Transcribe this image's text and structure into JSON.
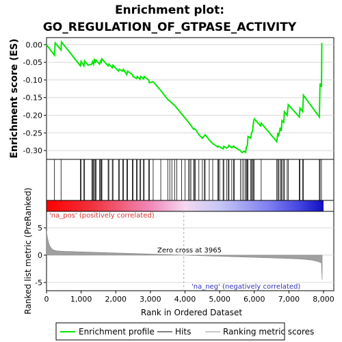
{
  "chart_data": {
    "type": "line",
    "title_line1": "Enrichment plot:",
    "title_line2": "GO_REGULATION_OF_GTPASE_ACTIVITY",
    "es_ylabel": "Enrichment score (ES)",
    "metric_ylabel": "Ranked list metric (PreRanked)",
    "xlabel": "Rank in Ordered Dataset",
    "xlim": [
      0,
      8000
    ],
    "es_ylim": [
      -0.325,
      0.02
    ],
    "metric_ylim": [
      -6.5,
      8
    ],
    "x_ticks": [
      0,
      1000,
      2000,
      3000,
      4000,
      5000,
      6000,
      7000,
      8000
    ],
    "x_tick_labels": [
      "0",
      "1,000",
      "2,000",
      "3,000",
      "4,000",
      "5,000",
      "6,000",
      "7,000",
      "8,000"
    ],
    "es_ticks": [
      0.0,
      -0.05,
      -0.1,
      -0.15,
      -0.2,
      -0.25,
      -0.3
    ],
    "es_tick_labels": [
      "0.00",
      "-0.05",
      "-0.10",
      "-0.15",
      "-0.20",
      "-0.25",
      "-0.30"
    ],
    "metric_ticks": [
      5,
      0,
      -5
    ],
    "metric_tick_labels": [
      "5",
      "0",
      "-5"
    ],
    "zero_cross_label": "Zero cross at 3965",
    "zero_cross": 3965,
    "pos_label": "'na_pos' (positively correlated)",
    "neg_label": "'na_neg' (negatively correlated)",
    "legend": [
      "Enrichment profile",
      "Hits",
      "Ranking metric scores"
    ],
    "colors": {
      "enrichment": "#00e600",
      "hits": "#000000",
      "metric": "#a0a0a0",
      "pos_text": "#e03030",
      "neg_text": "#3030c0"
    },
    "es_profile": {
      "x": [
        0,
        230,
        250,
        420,
        430,
        980,
        1000,
        1080,
        1100,
        1200,
        1310,
        1330,
        1360,
        1380,
        1410,
        1430,
        1530,
        1560,
        1580,
        1600,
        1780,
        1800,
        1900,
        1920,
        2080,
        2100,
        2200,
        2220,
        2320,
        2340,
        2480,
        2500,
        2600,
        2620,
        2700,
        2720,
        2800,
        2820,
        2950,
        2970,
        3080,
        3300,
        3500,
        3700,
        3900,
        4100,
        4250,
        4270,
        4300,
        4400,
        4500,
        4560,
        4580,
        4700,
        4800,
        4950,
        4970,
        5100,
        5120,
        5200,
        5250,
        5270,
        5350,
        5400,
        5420,
        5600,
        5650,
        5700,
        5750,
        5770,
        5800,
        5820,
        5900,
        5920,
        5950,
        5970,
        6000,
        6180,
        6200,
        6650,
        6680,
        6700,
        6750,
        6780,
        6800,
        6850,
        6870,
        6950,
        6980,
        7300,
        7320,
        7400,
        7420,
        7880,
        7900,
        7940,
        7950
      ],
      "y": [
        0.0,
        -0.03,
        0.005,
        -0.015,
        0.008,
        -0.06,
        -0.047,
        -0.06,
        -0.046,
        -0.058,
        -0.055,
        -0.048,
        -0.055,
        -0.04,
        -0.052,
        -0.044,
        -0.055,
        -0.046,
        -0.05,
        -0.04,
        -0.06,
        -0.055,
        -0.065,
        -0.058,
        -0.075,
        -0.07,
        -0.075,
        -0.07,
        -0.085,
        -0.075,
        -0.085,
        -0.09,
        -0.096,
        -0.09,
        -0.098,
        -0.09,
        -0.097,
        -0.09,
        -0.1,
        -0.108,
        -0.105,
        -0.13,
        -0.155,
        -0.172,
        -0.196,
        -0.22,
        -0.24,
        -0.238,
        -0.24,
        -0.255,
        -0.265,
        -0.258,
        -0.255,
        -0.27,
        -0.28,
        -0.29,
        -0.288,
        -0.295,
        -0.288,
        -0.293,
        -0.29,
        -0.285,
        -0.292,
        -0.287,
        -0.29,
        -0.3,
        -0.306,
        -0.302,
        -0.305,
        -0.29,
        -0.286,
        -0.26,
        -0.265,
        -0.25,
        -0.245,
        -0.225,
        -0.21,
        -0.23,
        -0.222,
        -0.275,
        -0.25,
        -0.26,
        -0.235,
        -0.245,
        -0.215,
        -0.22,
        -0.19,
        -0.2,
        -0.17,
        -0.205,
        -0.18,
        -0.19,
        -0.143,
        -0.205,
        -0.11,
        -0.12,
        0.005
      ]
    },
    "hits": [
      230,
      420,
      980,
      1000,
      1080,
      1100,
      1310,
      1330,
      1360,
      1380,
      1410,
      1430,
      1530,
      1560,
      1580,
      1600,
      1780,
      1800,
      1900,
      1920,
      2080,
      2100,
      2200,
      2220,
      2320,
      2340,
      2480,
      2500,
      2600,
      2620,
      2700,
      2720,
      2800,
      2820,
      2950,
      2970,
      3080,
      3300,
      3500,
      3560,
      3620,
      3700,
      3760,
      3900,
      4000,
      4100,
      4140,
      4170,
      4250,
      4270,
      4300,
      4400,
      4500,
      4560,
      4580,
      4700,
      4800,
      4950,
      4970,
      5000,
      5100,
      5120,
      5200,
      5250,
      5270,
      5350,
      5400,
      5420,
      5600,
      5650,
      5700,
      5750,
      5770,
      5800,
      5820,
      5900,
      5920,
      5950,
      5970,
      6000,
      6200,
      6650,
      6680,
      6700,
      6750,
      6780,
      6800,
      6850,
      6870,
      6950,
      6980,
      7300,
      7320,
      7400,
      7420,
      7880,
      7900,
      7940
    ]
  }
}
